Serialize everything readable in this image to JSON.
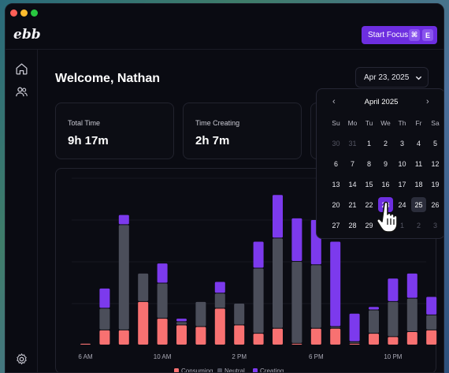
{
  "app": {
    "logo": "ebb",
    "focus_button": {
      "label": "Start Focus",
      "shortcut_keys": [
        "⌘",
        "E"
      ]
    }
  },
  "sidebar": {
    "icons": [
      "home-icon",
      "users-icon",
      "settings-icon"
    ]
  },
  "main": {
    "welcome": "Welcome, Nathan",
    "date_button": "Apr 23, 2025",
    "stats": [
      {
        "label": "Total Time",
        "value": "9h 17m"
      },
      {
        "label": "Time Creating",
        "value": "2h 7m"
      },
      {
        "label": "",
        "value": ""
      }
    ]
  },
  "calendar": {
    "month": "April 2025",
    "weekdays": [
      "Su",
      "Mo",
      "Tu",
      "We",
      "Th",
      "Fr",
      "Sa"
    ],
    "weeks": [
      [
        "30",
        "31",
        "1",
        "2",
        "3",
        "4",
        "5"
      ],
      [
        "6",
        "7",
        "8",
        "9",
        "10",
        "11",
        "12"
      ],
      [
        "13",
        "14",
        "15",
        "16",
        "17",
        "18",
        "19"
      ],
      [
        "20",
        "21",
        "22",
        "23",
        "24",
        "25",
        "26"
      ],
      [
        "27",
        "28",
        "29",
        "30",
        "1",
        "2",
        "3"
      ]
    ],
    "selected_day": "23",
    "highlighted_day": "25"
  },
  "colors": {
    "consuming": "#f87171",
    "neutral": "#4b4e5a",
    "creating": "#7c3aed",
    "accent": "#6d2ee0"
  },
  "chart_data": {
    "type": "bar",
    "stacked": true,
    "x_tick_labels": [
      "6 AM",
      "10 AM",
      "2 PM",
      "6 PM",
      "10 PM"
    ],
    "series": [
      {
        "name": "Consuming",
        "values": [
          0.1,
          0.9,
          0.9,
          2.6,
          1.6,
          1.2,
          1.1,
          2.2,
          1.2,
          0.7,
          1.0,
          0.1,
          1.0,
          1.0,
          0.1,
          0.7,
          0.5,
          0.8,
          0.9
        ]
      },
      {
        "name": "Neutral",
        "values": [
          0.0,
          1.3,
          6.3,
          1.7,
          2.1,
          0.2,
          1.5,
          0.9,
          1.3,
          3.9,
          5.4,
          4.9,
          3.8,
          0.1,
          0.1,
          1.4,
          2.1,
          2.0,
          0.9
        ]
      },
      {
        "name": "Creating",
        "values": [
          0.0,
          1.2,
          0.6,
          0.0,
          1.2,
          0.2,
          0.0,
          0.7,
          0.0,
          1.6,
          2.6,
          2.6,
          2.7,
          5.1,
          1.7,
          0.2,
          1.4,
          1.5,
          1.1
        ]
      }
    ],
    "legend": [
      "Consuming",
      "Neutral",
      "Creating"
    ],
    "legend_position": "bottom",
    "grid": true,
    "ylim": [
      0,
      10
    ]
  }
}
